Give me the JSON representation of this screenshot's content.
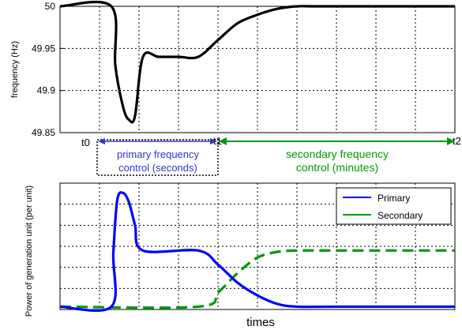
{
  "chart_data": [
    {
      "type": "line",
      "ylabel": "frequency (Hz)",
      "ylim": [
        49.85,
        50.0
      ],
      "yticks": [
        "50",
        "49.95",
        "49.9",
        "49.85"
      ],
      "time_markers": [
        "t0",
        "t1",
        "t2"
      ],
      "grid": true,
      "series": [
        {
          "color": "#000000",
          "x": [
            0,
            0.26,
            0.28,
            0.32,
            0.35,
            0.38,
            0.42,
            0.5,
            0.6,
            0.7,
            0.8,
            0.9,
            1.0,
            1.1,
            1.2,
            1.3,
            1.5,
            1.8,
            2.0
          ],
          "y": [
            50.0,
            50.0,
            49.93,
            49.88,
            49.865,
            49.87,
            49.94,
            49.94,
            49.94,
            49.94,
            49.96,
            49.98,
            49.99,
            49.997,
            50.0,
            50.0,
            50.0,
            50.0,
            50.0
          ]
        }
      ]
    },
    {
      "type": "line",
      "ylabel": "Power of generation unit (per unit)",
      "xlabel": "times",
      "grid": true,
      "legend_position": "top-right",
      "series": [
        {
          "name": "Primary",
          "color": "#0000ff",
          "x": [
            0,
            0.26,
            0.27,
            0.29,
            0.32,
            0.35,
            0.38,
            0.42,
            0.7,
            0.8,
            0.9,
            1.0,
            1.1,
            1.2,
            1.4,
            2.0
          ],
          "y": [
            0.02,
            0.02,
            0.4,
            0.78,
            0.83,
            0.76,
            0.6,
            0.42,
            0.42,
            0.32,
            0.19,
            0.1,
            0.04,
            0.02,
            0.02,
            0.02
          ]
        },
        {
          "name": "Secondary",
          "color": "#009900",
          "x": [
            0,
            0.7,
            0.8,
            0.9,
            1.0,
            1.1,
            1.2,
            1.4,
            2.0
          ],
          "y": [
            0.02,
            0.02,
            0.12,
            0.26,
            0.37,
            0.41,
            0.42,
            0.42,
            0.42
          ]
        }
      ]
    }
  ],
  "annotations": {
    "primary_line1": "primary frequency",
    "primary_line2": "control (seconds)",
    "secondary_line1": "secondary frequency",
    "secondary_line2": "control (minutes)",
    "primary_color": "#3333cc",
    "secondary_color": "#009900"
  }
}
